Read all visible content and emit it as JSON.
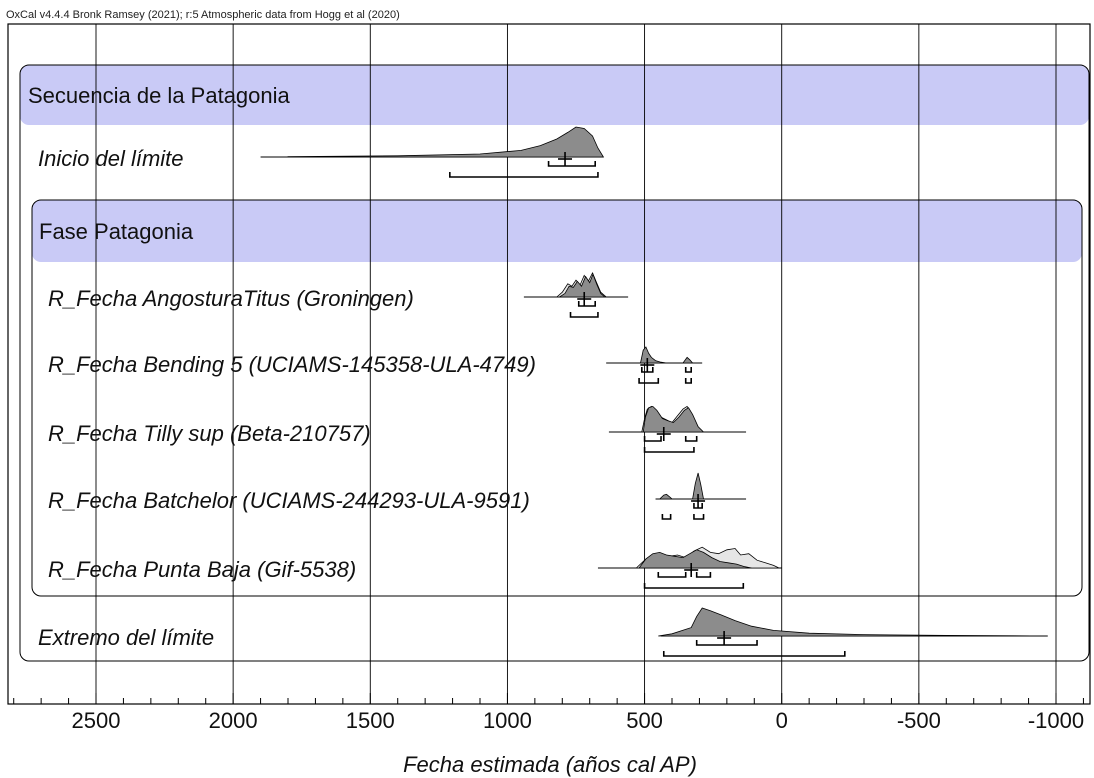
{
  "chart_data": {
    "type": "multiplot",
    "title": "OxCal v4.4.4 Bronk Ramsey (2021); r:5 Atmospheric data from Hogg et al (2020)",
    "xlabel": "Fecha estimada (años cal AP)",
    "xlim": [
      2800,
      -1100
    ],
    "x_ticks": [
      2500,
      2000,
      1500,
      1000,
      500,
      0,
      -500,
      -1000
    ],
    "x_tick_labels": [
      "2500",
      "2000",
      "1500",
      "1000",
      "500",
      "0",
      "-500",
      "-1000"
    ],
    "minor_tick_step": 100,
    "grid": true,
    "groups": [
      {
        "kind": "sequence",
        "label": "Secuencia de la Patagonia"
      },
      {
        "kind": "phase",
        "label": "Fase Patagonia"
      }
    ],
    "rows": [
      {
        "label": "Inicio del límite",
        "line": [
          1900,
          650
        ],
        "mean": 790,
        "ranges_68": [
          [
            850,
            680
          ]
        ],
        "ranges_95": [
          [
            1210,
            670
          ]
        ],
        "posterior": [
          [
            1800,
            0.01
          ],
          [
            1400,
            0.04
          ],
          [
            1100,
            0.1
          ],
          [
            950,
            0.22
          ],
          [
            880,
            0.38
          ],
          [
            820,
            0.6
          ],
          [
            780,
            0.82
          ],
          [
            750,
            1
          ],
          [
            720,
            0.95
          ],
          [
            690,
            0.7
          ],
          [
            670,
            0.3
          ],
          [
            650,
            0
          ]
        ]
      },
      {
        "label": "R_Fecha AngosturaTitus (Groningen)",
        "line": [
          940,
          560
        ],
        "mean": 720,
        "ranges_68": [
          [
            740,
            680
          ]
        ],
        "ranges_95": [
          [
            770,
            670
          ]
        ],
        "prior": [
          [
            820,
            0
          ],
          [
            800,
            0.2
          ],
          [
            780,
            0.55
          ],
          [
            765,
            0.45
          ],
          [
            750,
            0.7
          ],
          [
            735,
            0.5
          ],
          [
            720,
            0.9
          ],
          [
            705,
            0.65
          ],
          [
            690,
            1
          ],
          [
            675,
            0.6
          ],
          [
            660,
            0.2
          ],
          [
            640,
            0
          ]
        ],
        "posterior": [
          [
            810,
            0
          ],
          [
            790,
            0.15
          ],
          [
            775,
            0.45
          ],
          [
            760,
            0.4
          ],
          [
            745,
            0.65
          ],
          [
            730,
            0.45
          ],
          [
            715,
            0.85
          ],
          [
            700,
            0.6
          ],
          [
            688,
            0.95
          ],
          [
            675,
            0.55
          ],
          [
            660,
            0.15
          ],
          [
            645,
            0
          ]
        ]
      },
      {
        "label": "R_Fecha Bending 5 (UCIAMS-145358-ULA-4749)",
        "line": [
          640,
          290
        ],
        "mean": 490,
        "ranges_68": [
          [
            510,
            470
          ],
          [
            350,
            330
          ]
        ],
        "ranges_95": [
          [
            520,
            450
          ],
          [
            350,
            330
          ]
        ],
        "posterior": [
          [
            515,
            0
          ],
          [
            505,
            0.8
          ],
          [
            495,
            1
          ],
          [
            485,
            0.6
          ],
          [
            475,
            0.35
          ],
          [
            460,
            0.15
          ],
          [
            440,
            0.05
          ],
          [
            420,
            0
          ],
          [
            360,
            0
          ],
          [
            345,
            0.35
          ],
          [
            335,
            0.2
          ],
          [
            325,
            0
          ]
        ]
      },
      {
        "label": "R_Fecha Tilly sup (Beta-210757)",
        "line": [
          630,
          130
        ],
        "mean": 430,
        "ranges_68": [
          [
            500,
            440
          ],
          [
            350,
            310
          ]
        ],
        "ranges_95": [
          [
            500,
            320
          ]
        ],
        "prior": [
          [
            510,
            0
          ],
          [
            500,
            0.5
          ],
          [
            490,
            0.85
          ],
          [
            475,
            0.95
          ],
          [
            460,
            0.8
          ],
          [
            440,
            0.55
          ],
          [
            420,
            0.45
          ],
          [
            400,
            0.35
          ],
          [
            380,
            0.6
          ],
          [
            360,
            0.85
          ],
          [
            345,
            0.95
          ],
          [
            330,
            0.7
          ],
          [
            310,
            0.25
          ],
          [
            290,
            0
          ]
        ],
        "posterior": [
          [
            505,
            0
          ],
          [
            497,
            0.55
          ],
          [
            485,
            0.9
          ],
          [
            470,
            0.95
          ],
          [
            455,
            0.8
          ],
          [
            435,
            0.5
          ],
          [
            415,
            0.42
          ],
          [
            395,
            0.35
          ],
          [
            375,
            0.55
          ],
          [
            355,
            0.8
          ],
          [
            340,
            0.9
          ],
          [
            325,
            0.65
          ],
          [
            305,
            0.2
          ],
          [
            285,
            0
          ]
        ]
      },
      {
        "label": "R_Fecha Batchelor (UCIAMS-244293-ULA-9591)",
        "line": [
          460,
          130
        ],
        "mean": 305,
        "ranges_68": [
          [
            320,
            290
          ]
        ],
        "ranges_95": [
          [
            435,
            405
          ],
          [
            320,
            285
          ]
        ],
        "posterior": [
          [
            445,
            0
          ],
          [
            430,
            0.15
          ],
          [
            420,
            0.18
          ],
          [
            405,
            0.05
          ],
          [
            400,
            0
          ],
          [
            325,
            0
          ],
          [
            315,
            0.6
          ],
          [
            305,
            1
          ],
          [
            295,
            0.55
          ],
          [
            285,
            0
          ]
        ]
      },
      {
        "label": "R_Fecha Punta Baja (Gif-5538)",
        "line": [
          670,
          0
        ],
        "mean": 330,
        "ranges_68": [
          [
            450,
            350
          ],
          [
            310,
            260
          ]
        ],
        "ranges_95": [
          [
            500,
            140
          ]
        ],
        "prior": [
          [
            530,
            0
          ],
          [
            500,
            0.3
          ],
          [
            470,
            0.5
          ],
          [
            440,
            0.55
          ],
          [
            410,
            0.45
          ],
          [
            380,
            0.5
          ],
          [
            350,
            0.4
          ],
          [
            320,
            0.65
          ],
          [
            290,
            0.8
          ],
          [
            260,
            0.6
          ],
          [
            230,
            0.55
          ],
          [
            200,
            0.7
          ],
          [
            170,
            0.75
          ],
          [
            150,
            0.5
          ],
          [
            120,
            0.55
          ],
          [
            90,
            0.3
          ],
          [
            60,
            0.2
          ],
          [
            30,
            0.1
          ],
          [
            10,
            0
          ]
        ],
        "posterior": [
          [
            520,
            0
          ],
          [
            495,
            0.35
          ],
          [
            470,
            0.55
          ],
          [
            445,
            0.6
          ],
          [
            420,
            0.5
          ],
          [
            390,
            0.45
          ],
          [
            360,
            0.4
          ],
          [
            335,
            0.55
          ],
          [
            310,
            0.7
          ],
          [
            285,
            0.6
          ],
          [
            255,
            0.4
          ],
          [
            225,
            0.25
          ],
          [
            195,
            0.2
          ],
          [
            165,
            0.15
          ],
          [
            135,
            0.05
          ],
          [
            110,
            0
          ]
        ]
      },
      {
        "label": "Extremo del límite",
        "line": [
          440,
          -970
        ],
        "mean": 210,
        "ranges_68": [
          [
            310,
            90
          ]
        ],
        "ranges_95": [
          [
            430,
            -230
          ]
        ],
        "posterior": [
          [
            450,
            0
          ],
          [
            400,
            0.08
          ],
          [
            330,
            0.3
          ],
          [
            310,
            0.7
          ],
          [
            290,
            1
          ],
          [
            260,
            0.9
          ],
          [
            220,
            0.75
          ],
          [
            170,
            0.55
          ],
          [
            110,
            0.35
          ],
          [
            30,
            0.2
          ],
          [
            -100,
            0.1
          ],
          [
            -300,
            0.05
          ],
          [
            -600,
            0.02
          ],
          [
            -960,
            0
          ]
        ]
      }
    ]
  }
}
